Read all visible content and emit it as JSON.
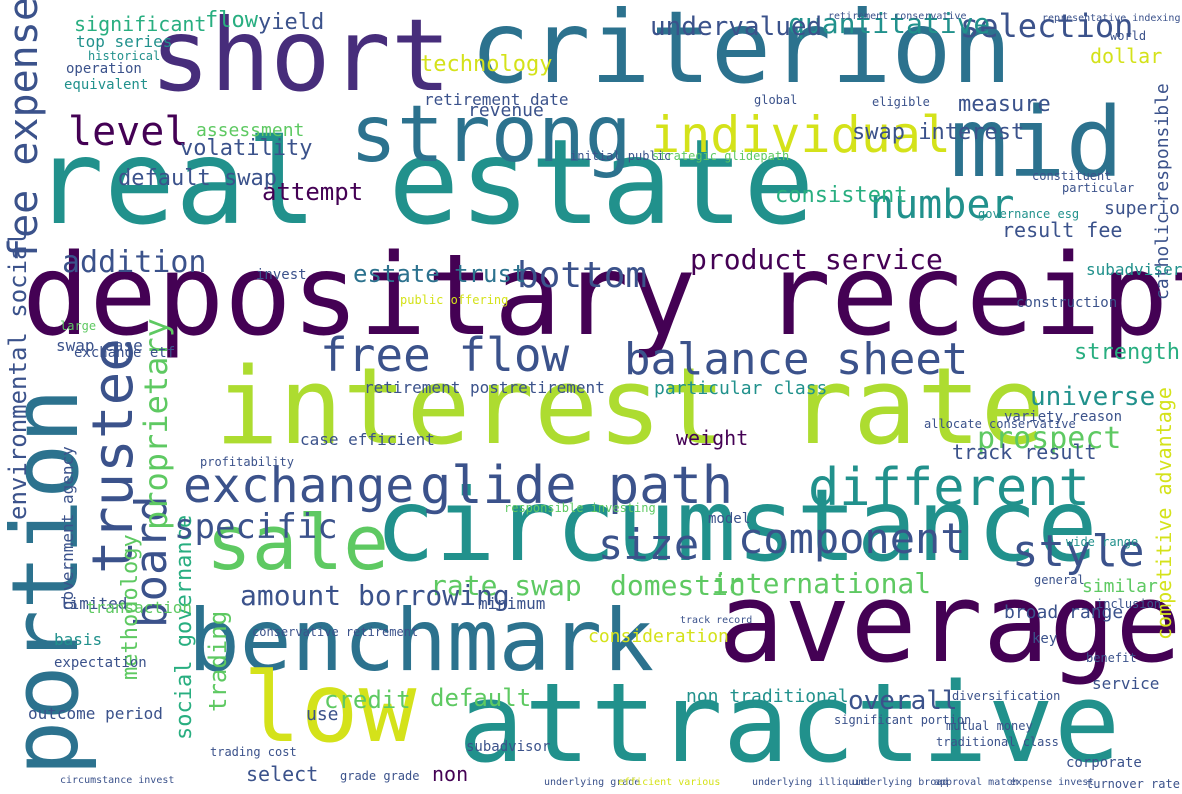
{
  "words": [
    {
      "text": "real estate",
      "color": "#21918c"
    },
    {
      "text": "depositary receipt",
      "color": "#440154"
    },
    {
      "text": "interest rate",
      "color": "#addc30"
    },
    {
      "text": "criterion",
      "color": "#2c728e"
    },
    {
      "text": "short",
      "color": "#472d7b"
    },
    {
      "text": "circumstance",
      "color": "#21918c"
    },
    {
      "text": "average",
      "color": "#440154"
    },
    {
      "text": "attractive",
      "color": "#21918c"
    },
    {
      "text": "benchmark",
      "color": "#2c728e"
    },
    {
      "text": "portion",
      "color": "#2c728e"
    },
    {
      "text": "mid",
      "color": "#2c728e"
    },
    {
      "text": "strong",
      "color": "#2c728e"
    },
    {
      "text": "low",
      "color": "#d4e21a"
    },
    {
      "text": "sale",
      "color": "#5ec962"
    },
    {
      "text": "trustee",
      "color": "#3b528b"
    },
    {
      "text": "individual",
      "color": "#d4e21a"
    },
    {
      "text": "exchange",
      "color": "#3b528b"
    },
    {
      "text": "glide path",
      "color": "#3b528b"
    },
    {
      "text": "different",
      "color": "#21918c"
    },
    {
      "text": "free flow",
      "color": "#3b528b"
    },
    {
      "text": "balance sheet",
      "color": "#3b528b"
    },
    {
      "text": "component",
      "color": "#3b528b"
    },
    {
      "text": "size",
      "color": "#3b528b"
    },
    {
      "text": "level",
      "color": "#440154"
    },
    {
      "text": "fee expense",
      "color": "#3b528b"
    },
    {
      "text": "bottom",
      "color": "#3b528b"
    },
    {
      "text": "number",
      "color": "#21918c"
    },
    {
      "text": "specific",
      "color": "#3b528b"
    },
    {
      "text": "style",
      "color": "#3b528b"
    },
    {
      "text": "addition",
      "color": "#3b528b"
    },
    {
      "text": "product service",
      "color": "#440154"
    },
    {
      "text": "board",
      "color": "#3b528b"
    },
    {
      "text": "prospect",
      "color": "#5ec962"
    },
    {
      "text": "universe",
      "color": "#21918c"
    },
    {
      "text": "selection",
      "color": "#3b528b"
    },
    {
      "text": "quantitative",
      "color": "#21918c"
    },
    {
      "text": "undervalued",
      "color": "#3b528b"
    },
    {
      "text": "domestic",
      "color": "#5ec962"
    },
    {
      "text": "international",
      "color": "#5ec962"
    },
    {
      "text": "proprietary",
      "color": "#5ec962"
    },
    {
      "text": "rate swap",
      "color": "#5ec962"
    },
    {
      "text": "amount borrowing",
      "color": "#3b528b"
    },
    {
      "text": "credit",
      "color": "#5ec962"
    },
    {
      "text": "default",
      "color": "#5ec962"
    },
    {
      "text": "overall",
      "color": "#3b528b"
    },
    {
      "text": "estate trust",
      "color": "#2c728e"
    },
    {
      "text": "attempt",
      "color": "#440154"
    },
    {
      "text": "volatility",
      "color": "#3b528b"
    },
    {
      "text": "technology",
      "color": "#d4e21a"
    },
    {
      "text": "default swap",
      "color": "#3b528b"
    },
    {
      "text": "consistent",
      "color": "#28ae80"
    },
    {
      "text": "swap interest",
      "color": "#3b528b"
    },
    {
      "text": "measure",
      "color": "#3b528b"
    },
    {
      "text": "flow",
      "color": "#28ae80"
    },
    {
      "text": "yield",
      "color": "#3b528b"
    },
    {
      "text": "significant",
      "color": "#28ae80"
    },
    {
      "text": "result fee",
      "color": "#3b528b"
    },
    {
      "text": "strength",
      "color": "#28ae80"
    },
    {
      "text": "environmental social",
      "color": "#3b528b"
    },
    {
      "text": "methodology",
      "color": "#5ec962"
    },
    {
      "text": "social governance",
      "color": "#28ae80"
    },
    {
      "text": "trading",
      "color": "#5ec962"
    },
    {
      "text": "weight",
      "color": "#440154"
    },
    {
      "text": "track result",
      "color": "#3b528b"
    },
    {
      "text": "competitive advantage",
      "color": "#d4e21a"
    },
    {
      "text": "catholic responsible",
      "color": "#3b528b"
    },
    {
      "text": "broad range",
      "color": "#3b528b"
    },
    {
      "text": "consideration",
      "color": "#d4e21a"
    },
    {
      "text": "non traditional",
      "color": "#21918c"
    },
    {
      "text": "revenue",
      "color": "#3b528b"
    },
    {
      "text": "retirement date",
      "color": "#3b528b"
    },
    {
      "text": "assessment",
      "color": "#5ec962"
    },
    {
      "text": "retirement postretirement",
      "color": "#3b528b"
    },
    {
      "text": "particular class",
      "color": "#21918c"
    },
    {
      "text": "case efficient",
      "color": "#3b528b"
    },
    {
      "text": "similar",
      "color": "#5ec962"
    },
    {
      "text": "select",
      "color": "#3b528b"
    },
    {
      "text": "non",
      "color": "#440154"
    },
    {
      "text": "use",
      "color": "#3b528b"
    },
    {
      "text": "minimum",
      "color": "#3b528b"
    },
    {
      "text": "swap case",
      "color": "#3b528b"
    },
    {
      "text": "limited",
      "color": "#3b528b"
    },
    {
      "text": "outcome period",
      "color": "#3b528b"
    },
    {
      "text": "government agency",
      "color": "#3b528b"
    },
    {
      "text": "transaction",
      "color": "#5ec962"
    },
    {
      "text": "expectation",
      "color": "#3b528b"
    },
    {
      "text": "basis",
      "color": "#21918c"
    },
    {
      "text": "operation",
      "color": "#3b528b"
    },
    {
      "text": "equivalent",
      "color": "#21918c"
    },
    {
      "text": "top series",
      "color": "#21918c"
    },
    {
      "text": "historical",
      "color": "#21918c"
    },
    {
      "text": "invest",
      "color": "#3b528b"
    },
    {
      "text": "exchange etf",
      "color": "#3b528b"
    },
    {
      "text": "dollar",
      "color": "#d4e21a"
    },
    {
      "text": "superior",
      "color": "#3b528b"
    },
    {
      "text": "subadviser",
      "color": "#21918c"
    },
    {
      "text": "construction",
      "color": "#3b528b"
    },
    {
      "text": "service",
      "color": "#3b528b"
    },
    {
      "text": "corporate",
      "color": "#3b528b"
    },
    {
      "text": "circumstance invest",
      "color": "#3b528b"
    },
    {
      "text": "underlying grade",
      "color": "#3b528b"
    },
    {
      "text": "efficient various",
      "color": "#d4e21a"
    },
    {
      "text": "underlying illiquid",
      "color": "#3b528b"
    },
    {
      "text": "underlying broad",
      "color": "#3b528b"
    },
    {
      "text": "approval match",
      "color": "#3b528b"
    },
    {
      "text": "expense invest",
      "color": "#3b528b"
    },
    {
      "text": "turnover rate",
      "color": "#3b528b"
    },
    {
      "text": "subadvisor",
      "color": "#3b528b"
    },
    {
      "text": "grade grade",
      "color": "#3b528b"
    },
    {
      "text": "mutual money",
      "color": "#3b528b"
    },
    {
      "text": "diversification",
      "color": "#3b528b"
    },
    {
      "text": "traditional class",
      "color": "#3b528b"
    },
    {
      "text": "significant portion",
      "color": "#3b528b"
    },
    {
      "text": "model",
      "color": "#3b528b"
    },
    {
      "text": "strategic glidepath",
      "color": "#5ec962"
    },
    {
      "text": "initial public",
      "color": "#3b528b"
    },
    {
      "text": "public offering",
      "color": "#d4e21a"
    },
    {
      "text": "conservative retirement",
      "color": "#3b528b"
    },
    {
      "text": "trading cost",
      "color": "#3b528b"
    },
    {
      "text": "profitability",
      "color": "#3b528b"
    },
    {
      "text": "large",
      "color": "#5ec962"
    },
    {
      "text": "responsible investing",
      "color": "#5ec962"
    },
    {
      "text": "retirement conservative",
      "color": "#3b528b"
    },
    {
      "text": "representative indexing",
      "color": "#3b528b"
    },
    {
      "text": "world",
      "color": "#3b528b"
    },
    {
      "text": "global",
      "color": "#3b528b"
    },
    {
      "text": "eligible",
      "color": "#3b528b"
    },
    {
      "text": "constituent",
      "color": "#3b528b"
    },
    {
      "text": "particular",
      "color": "#3b528b"
    },
    {
      "text": "governance esg",
      "color": "#21918c"
    },
    {
      "text": "track record",
      "color": "#3b528b"
    },
    {
      "text": "allocate conservative",
      "color": "#3b528b"
    },
    {
      "text": "variety reason",
      "color": "#3b528b"
    },
    {
      "text": "wide range",
      "color": "#21918c"
    },
    {
      "text": "inclusion",
      "color": "#3b528b"
    },
    {
      "text": "key",
      "color": "#3b528b"
    },
    {
      "text": "benefit",
      "color": "#3b528b"
    },
    {
      "text": "general",
      "color": "#3b528b"
    }
  ]
}
